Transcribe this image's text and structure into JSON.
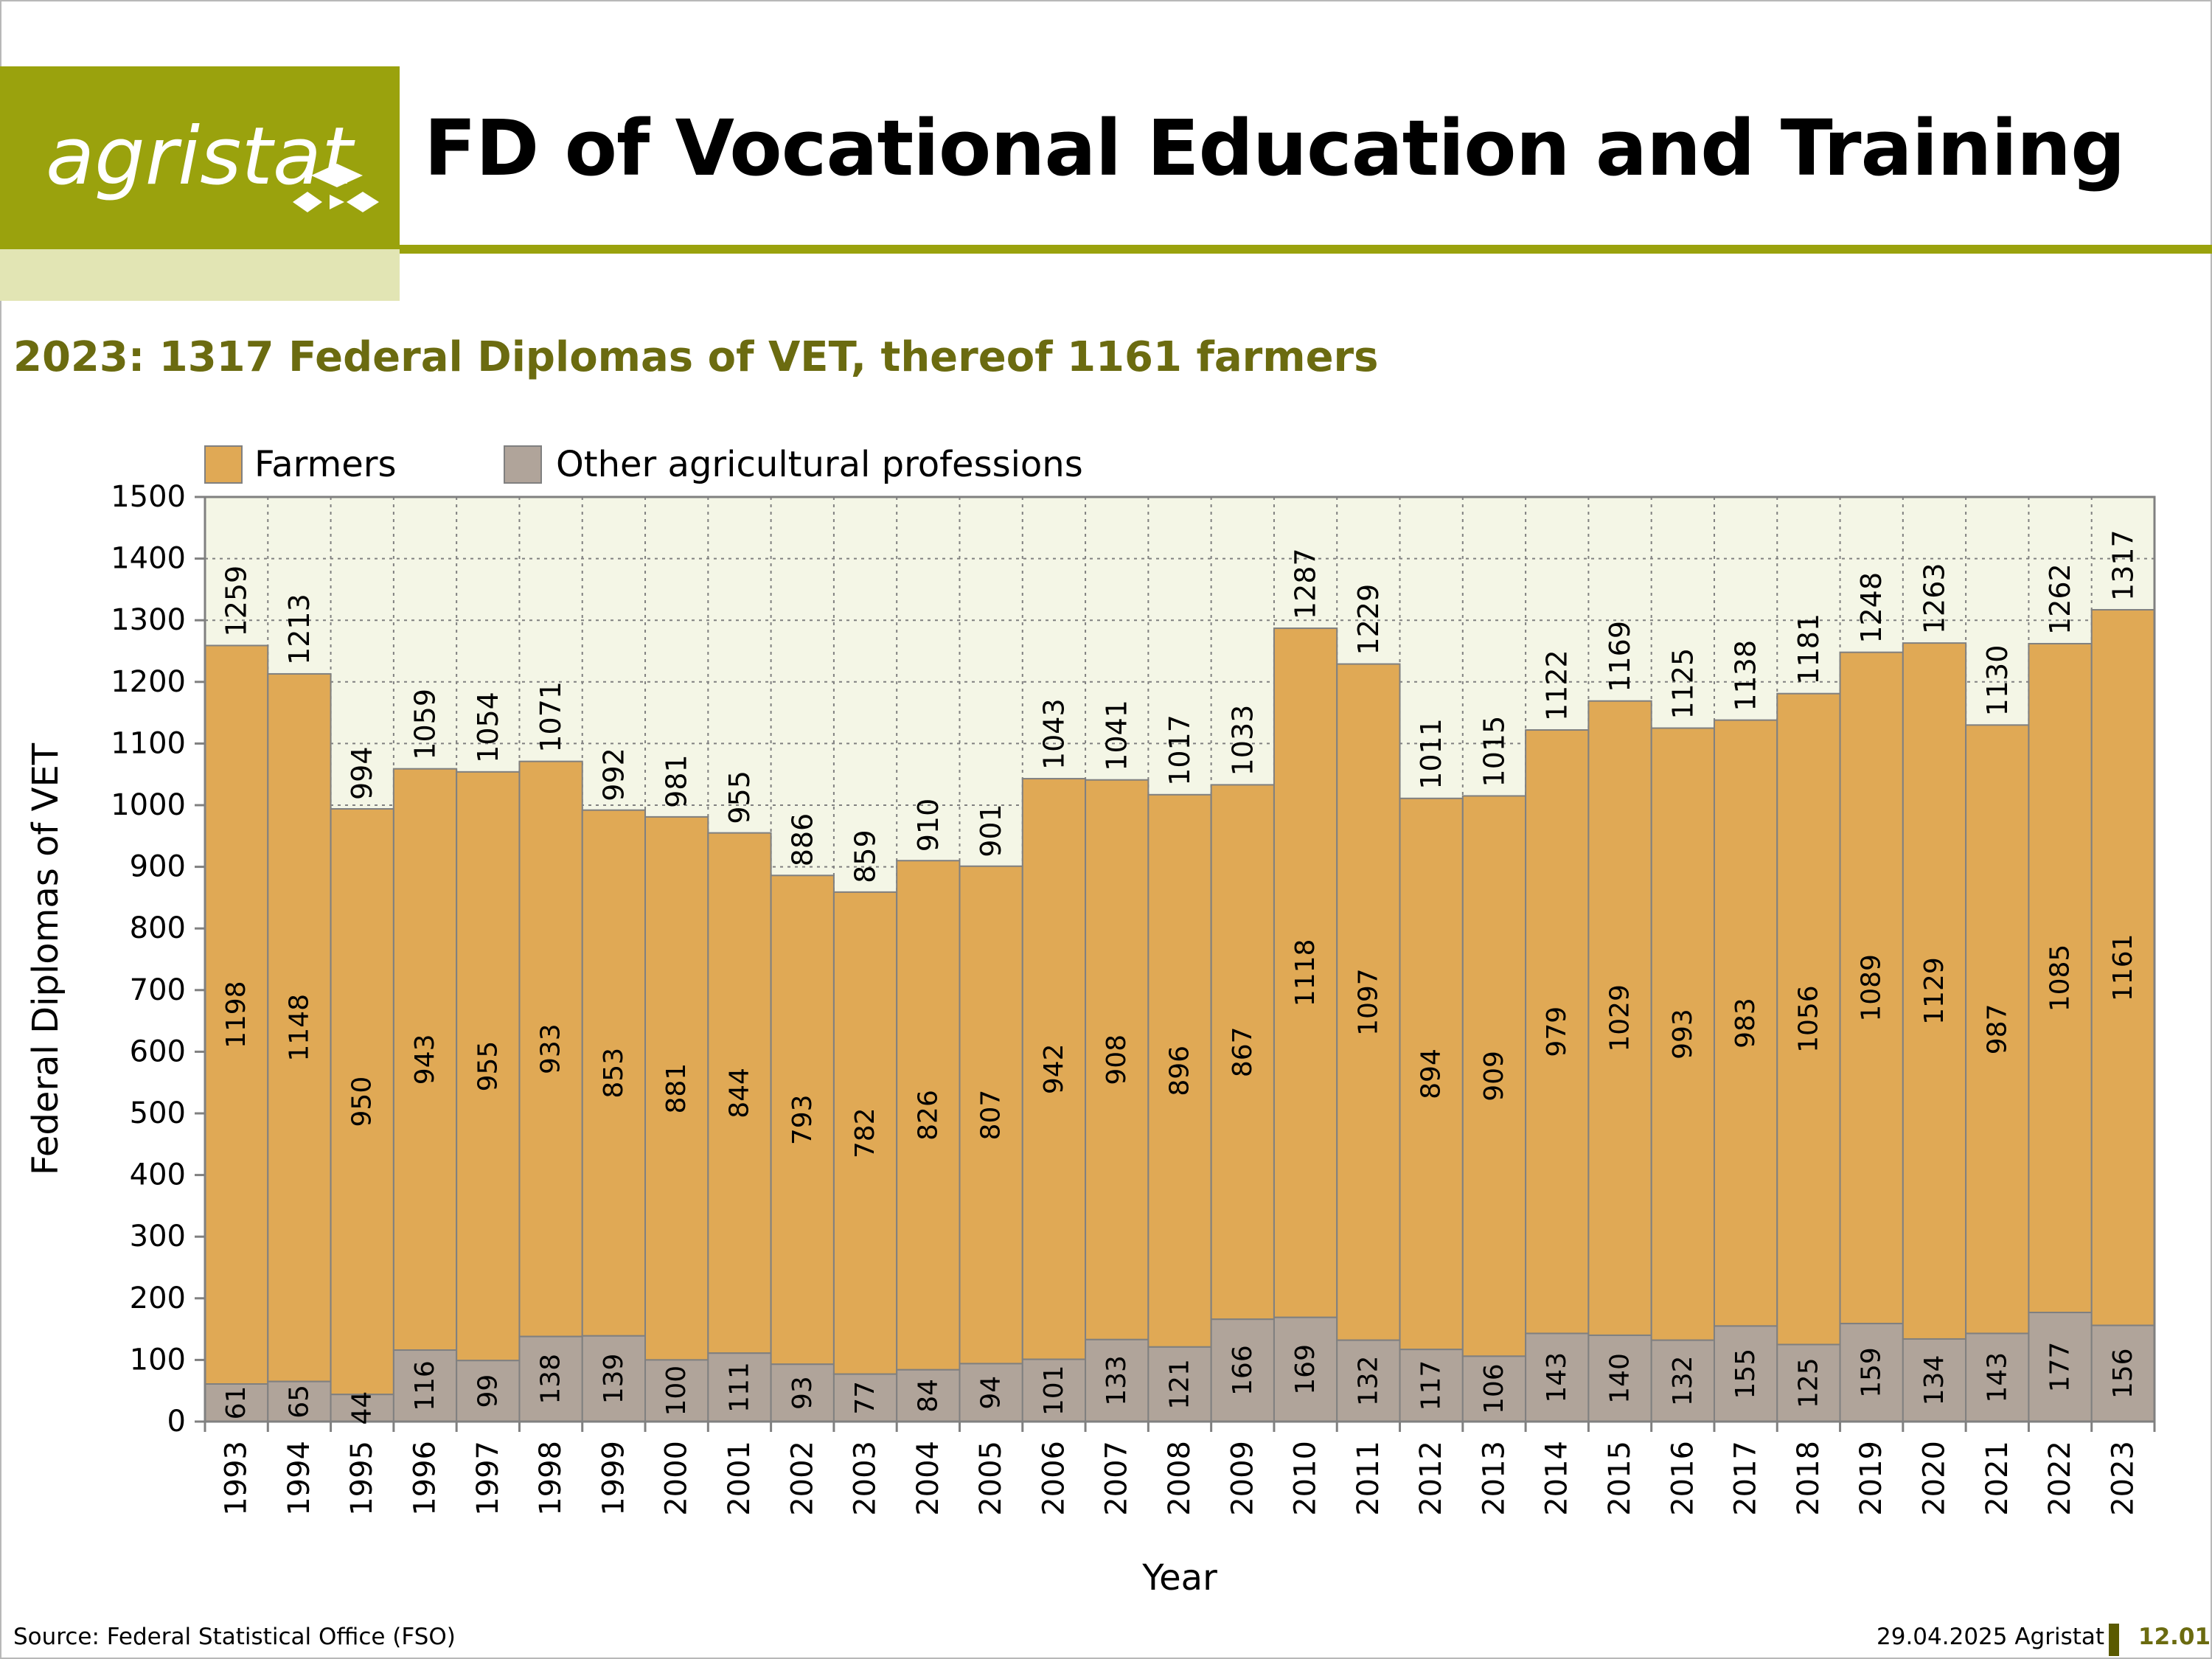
{
  "header": {
    "logo_text": "agristat",
    "title": "FD of Vocational Education and Training"
  },
  "subtitle": "2023: 1317 Federal Diplomas of VET, thereof 1161 farmers",
  "footer": {
    "source": "Source: Federal Statistical Office (FSO)",
    "date": "29.04.2025 Agristat",
    "page_number": "12.01"
  },
  "colors": {
    "brand_green": "#9aa20d",
    "farmers": "#e0a955",
    "other": "#b0a49a",
    "plot_bg": "#f4f6e6"
  },
  "chart_data": {
    "type": "bar",
    "stacked": true,
    "xlabel": "Year",
    "ylabel": "Federal Diplomas of VET",
    "ylim": [
      0,
      1500
    ],
    "yticks": [
      0,
      100,
      200,
      300,
      400,
      500,
      600,
      700,
      800,
      900,
      1000,
      1100,
      1200,
      1300,
      1400,
      1500
    ],
    "grid": true,
    "legend_position": "top-left",
    "categories": [
      "1993",
      "1994",
      "1995",
      "1996",
      "1997",
      "1998",
      "1999",
      "2000",
      "2001",
      "2002",
      "2003",
      "2004",
      "2005",
      "2006",
      "2007",
      "2008",
      "2009",
      "2010",
      "2011",
      "2012",
      "2013",
      "2014",
      "2015",
      "2016",
      "2017",
      "2018",
      "2019",
      "2020",
      "2021",
      "2022",
      "2023"
    ],
    "series": [
      {
        "name": "Farmers",
        "color": "#e0a955",
        "values": [
          1198,
          1148,
          950,
          943,
          955,
          933,
          853,
          881,
          844,
          793,
          782,
          826,
          807,
          942,
          908,
          896,
          867,
          1118,
          1097,
          894,
          909,
          979,
          1029,
          993,
          983,
          1056,
          1089,
          1129,
          987,
          1085,
          1161
        ]
      },
      {
        "name": "Other agricultural professions",
        "color": "#b0a49a",
        "values": [
          61,
          65,
          44,
          116,
          99,
          138,
          139,
          100,
          111,
          93,
          77,
          84,
          94,
          101,
          133,
          121,
          166,
          169,
          132,
          117,
          106,
          143,
          140,
          132,
          155,
          125,
          159,
          134,
          143,
          177,
          156
        ]
      }
    ],
    "totals": [
      1259,
      1213,
      994,
      1059,
      1054,
      1071,
      992,
      981,
      955,
      886,
      859,
      910,
      901,
      1043,
      1041,
      1017,
      1033,
      1287,
      1229,
      1011,
      1015,
      1122,
      1169,
      1125,
      1138,
      1181,
      1248,
      1263,
      1130,
      1262,
      1317
    ]
  }
}
